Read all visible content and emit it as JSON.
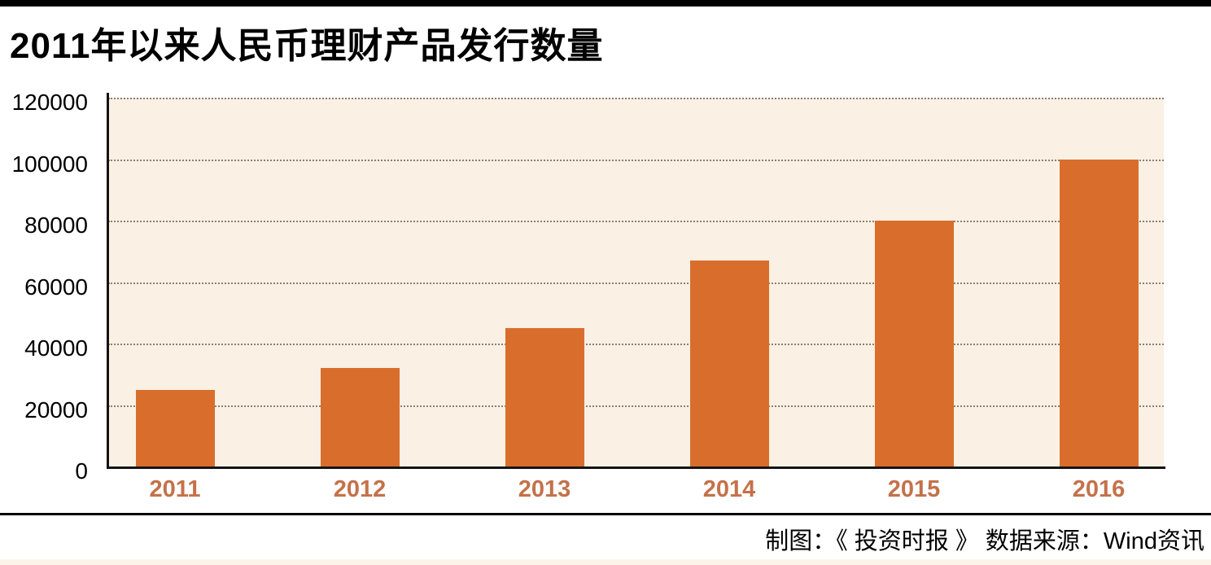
{
  "header": {
    "title": "2011年以来人民币理财产品发行数量"
  },
  "footer": {
    "credit": "制图：《 投资时报 》  数据来源：Wind资讯"
  },
  "colors": {
    "top_bar": "#000000",
    "title": "#000000",
    "plot_bg": "#faf0e3",
    "gridline": "#8b7f72",
    "bar": "#d96e2c",
    "axis": "#141414",
    "y_label": "#000000",
    "x_label": "#c4714a",
    "divider": "#000000",
    "bottom_strip": "#fcf4e8"
  },
  "chart_data": {
    "type": "bar",
    "title": "2011年以来人民币理财产品发行数量",
    "categories": [
      "2011",
      "2012",
      "2013",
      "2014",
      "2015",
      "2016"
    ],
    "values": [
      25000,
      32000,
      45000,
      67000,
      80000,
      100000
    ],
    "xlabel": "",
    "ylabel": "",
    "ylim": [
      0,
      120000
    ],
    "ytick_interval": 20000,
    "ytick_labels": [
      "0",
      "20000",
      "40000",
      "60000",
      "80000",
      "100000",
      "120000"
    ],
    "grid": "horizontal dotted lines at every y tick, plot background cream",
    "legend": "none",
    "bar_color": "#d96e2c",
    "source_note": "制图：《 投资时报 》  数据来源：Wind资讯"
  }
}
